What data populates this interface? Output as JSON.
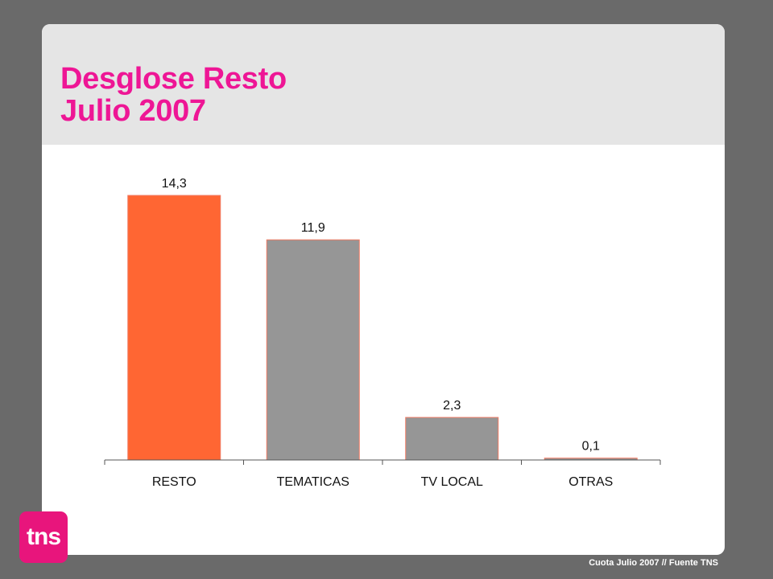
{
  "colors": {
    "title": "#ee1695",
    "highlight_bar": "#ff6633",
    "other_bars": "#969696",
    "bar_border": "#f07a63",
    "logo": "#e8157c"
  },
  "slide": {
    "title_line1": "Desglose Resto",
    "title_line2": "Julio 2007",
    "footer": "Cuota Julio 2007  // Fuente TNS"
  },
  "logo": {
    "text": "tns",
    "trademark": "™"
  },
  "chart_data": {
    "type": "bar",
    "title": "",
    "xlabel": "",
    "ylabel": "",
    "categories": [
      "RESTO",
      "TEMATICAS",
      "TV LOCAL",
      "OTRAS"
    ],
    "values": [
      14.3,
      11.9,
      2.3,
      0.1
    ],
    "value_labels": [
      "14,3",
      "11,9",
      "2,3",
      "0,1"
    ],
    "highlight_index": 0,
    "ylim": [
      0,
      14.3
    ],
    "grid": false,
    "legend": "none"
  }
}
